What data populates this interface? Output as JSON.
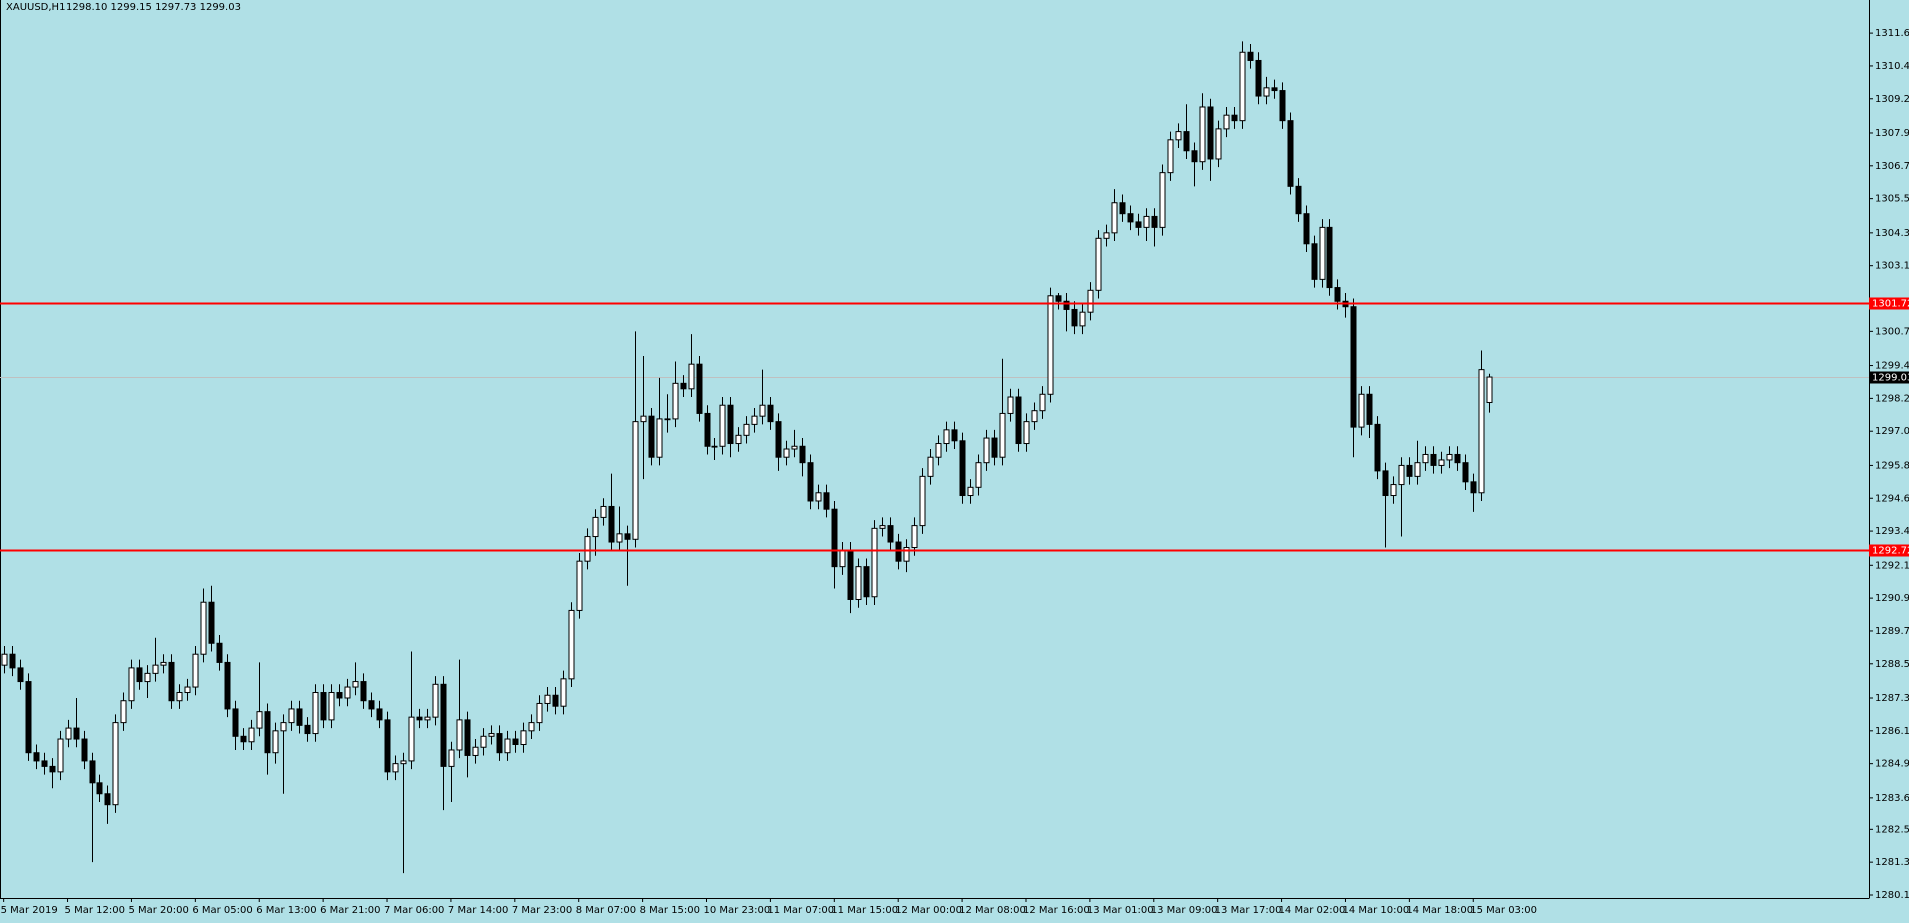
{
  "chart_data": {
    "type": "candlestick",
    "title": "XAUUSD,H1",
    "ohlc_text": "1298.10 1299.15 1297.73 1299.03",
    "background": "#b0e0e6",
    "up_color": "#ffffff",
    "down_color": "#000000",
    "grid": false,
    "ylim": [
      1279.99,
      1312.81
    ],
    "yticks": [
      {
        "value": 1311.6,
        "label": "1311.60"
      },
      {
        "value": 1310.4,
        "label": "1310.40"
      },
      {
        "value": 1309.2,
        "label": "1309.20"
      },
      1307.95,
      1306.75,
      1305.55,
      {
        "value": 1304.3,
        "label": "1304.30"
      },
      {
        "value": 1303.1,
        "label": "1303.10"
      },
      {
        "value": 1300.7,
        "label": "1300.70"
      },
      1299.45,
      1298.25,
      1297.05,
      {
        "value": 1295.8,
        "label": "1295.80"
      },
      {
        "value": 1294.6,
        "label": "1294.60"
      },
      {
        "value": 1293.4,
        "label": "1293.40"
      },
      1292.15,
      1290.95,
      1289.75,
      1288.55,
      {
        "value": 1287.3,
        "label": "1287.30"
      },
      {
        "value": 1286.1,
        "label": "1286.10"
      },
      {
        "value": 1284.9,
        "label": "1284.90"
      },
      1283.65,
      {
        "value": 1282.5,
        "label": "1282.50"
      },
      {
        "value": 1281.3,
        "label": "1281.30"
      },
      {
        "value": 1280.1,
        "label": "1280.10"
      }
    ],
    "hlines": [
      {
        "value": 1301.72,
        "color": "#ff0000"
      },
      {
        "value": 1292.72,
        "color": "#ff0000"
      }
    ],
    "current_price": {
      "value": 1299.03,
      "color": "#c0c0c0"
    },
    "categories": [
      "5 Mar 2019",
      null,
      null,
      null,
      null,
      null,
      null,
      null,
      "5 Mar 12:00",
      null,
      null,
      null,
      null,
      null,
      null,
      null,
      "5 Mar 20:00",
      null,
      null,
      null,
      null,
      null,
      null,
      null,
      "6 Mar 05:00",
      null,
      null,
      null,
      null,
      null,
      null,
      null,
      "6 Mar 13:00",
      null,
      null,
      null,
      null,
      null,
      null,
      null,
      "6 Mar 21:00",
      null,
      null,
      null,
      null,
      null,
      null,
      null,
      "7 Mar 06:00",
      null,
      null,
      null,
      null,
      null,
      null,
      null,
      "7 Mar 14:00",
      null,
      null,
      null,
      null,
      null,
      null,
      null,
      "7 Mar 23:00",
      null,
      null,
      null,
      null,
      null,
      null,
      null,
      "8 Mar 07:00",
      null,
      null,
      null,
      null,
      null,
      null,
      null,
      "8 Mar 15:00",
      null,
      null,
      null,
      null,
      null,
      null,
      null,
      "10 Mar 23:00",
      null,
      null,
      null,
      null,
      null,
      null,
      null,
      "11 Mar 07:00",
      null,
      null,
      null,
      null,
      null,
      null,
      null,
      "11 Mar 15:00",
      null,
      null,
      null,
      null,
      null,
      null,
      null,
      "12 Mar 00:00",
      null,
      null,
      null,
      null,
      null,
      null,
      null,
      "12 Mar 08:00",
      null,
      null,
      null,
      null,
      null,
      null,
      null,
      "12 Mar 16:00",
      null,
      null,
      null,
      null,
      null,
      null,
      null,
      "13 Mar 01:00",
      null,
      null,
      null,
      null,
      null,
      null,
      null,
      "13 Mar 09:00",
      null,
      null,
      null,
      null,
      null,
      null,
      null,
      "13 Mar 17:00",
      null,
      null,
      null,
      null,
      null,
      null,
      null,
      "14 Mar 02:00",
      null,
      null,
      null,
      null,
      null,
      null,
      null,
      "14 Mar 10:00",
      null,
      null,
      null,
      null,
      null,
      null,
      null,
      "14 Mar 18:00",
      null,
      null,
      null,
      null,
      null,
      null,
      null,
      "15 Mar 03:00",
      null,
      null
    ],
    "open": [
      1288.5,
      1288.9,
      1288.4,
      1287.9,
      1285.3,
      1285.0,
      1284.8,
      1284.6,
      1285.8,
      1286.2,
      1285.8,
      1285.0,
      1284.2,
      1283.8,
      1283.4,
      1286.4,
      1287.2,
      1288.4,
      1287.9,
      1288.2,
      1288.5,
      1288.6,
      1287.2,
      1287.5,
      1287.7,
      1288.9,
      1290.8,
      1289.3,
      1288.6,
      1286.9,
      1285.9,
      1285.7,
      1286.2,
      1286.8,
      1285.3,
      1286.1,
      1286.4,
      1286.9,
      1286.3,
      1286.0,
      1287.5,
      1286.5,
      1287.5,
      1287.3,
      1287.7,
      1287.9,
      1287.2,
      1286.9,
      1286.5,
      1284.6,
      1284.9,
      1285.0,
      1286.6,
      1286.5,
      1286.6,
      1287.8,
      1284.8,
      1285.4,
      1286.5,
      1285.2,
      1285.5,
      1285.9,
      1286.0,
      1285.3,
      1285.8,
      1285.6,
      1286.1,
      1286.4,
      1287.1,
      1287.4,
      1287.0,
      1288.0,
      1290.5,
      1292.3,
      1293.2,
      1293.9,
      1294.3,
      1293.0,
      1293.3,
      1293.1,
      1297.4,
      1297.6,
      1296.1,
      1297.5,
      1297.5,
      1298.8,
      1298.6,
      1299.5,
      1297.7,
      1296.5,
      1296.5,
      1298.0,
      1296.6,
      1296.9,
      1297.3,
      1297.6,
      1298.0,
      1297.4,
      1296.1,
      1296.4,
      1296.5,
      1295.9,
      1294.5,
      1294.8,
      1294.2,
      1292.1,
      1292.7,
      1290.9,
      1292.1,
      1291.0,
      1293.5,
      1293.6,
      1293.0,
      1292.3,
      1292.8,
      1293.6,
      1295.4,
      1296.1,
      1296.6,
      1297.1,
      1296.7,
      1294.7,
      1295.0,
      1295.9,
      1296.8,
      1296.1,
      1297.7,
      1298.3,
      1296.6,
      1297.4,
      1297.8,
      1298.4,
      1302.0,
      1301.8,
      1301.5,
      1300.9,
      1301.4,
      1302.2,
      1304.1,
      1304.3,
      1305.4,
      1305.0,
      1304.7,
      1304.5,
      1304.9,
      1304.5,
      1306.5,
      1307.7,
      1308.0,
      1307.3,
      1306.9,
      1308.9,
      1307.0,
      1308.1,
      1308.6,
      1308.4,
      1310.9,
      1310.6,
      1309.3,
      1309.6,
      1309.5,
      1308.4,
      1306.0,
      1305.0,
      1303.9,
      1302.6,
      1304.5,
      1302.3,
      1301.8,
      1301.6,
      1297.2,
      1298.4,
      1297.3,
      1295.6,
      1294.7,
      1295.1,
      1295.8,
      1295.4,
      1295.9,
      1296.2,
      1295.8,
      1296.0,
      1296.2,
      1295.9,
      1295.2,
      1294.8,
      1298.1
    ],
    "high": [
      1289.2,
      1289.2,
      1288.7,
      1288.2,
      1285.6,
      1285.3,
      1285.1,
      1286.1,
      1286.5,
      1287.3,
      1286.1,
      1285.3,
      1284.5,
      1284.1,
      1286.7,
      1287.5,
      1288.7,
      1288.7,
      1288.5,
      1289.5,
      1288.9,
      1288.9,
      1287.8,
      1288.0,
      1289.2,
      1291.3,
      1291.4,
      1289.6,
      1288.9,
      1287.2,
      1286.2,
      1286.5,
      1288.6,
      1287.1,
      1286.4,
      1286.7,
      1287.2,
      1287.2,
      1286.6,
      1287.8,
      1287.8,
      1287.8,
      1287.8,
      1288.0,
      1288.6,
      1288.2,
      1287.5,
      1287.2,
      1286.8,
      1285.2,
      1285.3,
      1289.0,
      1286.9,
      1286.9,
      1288.1,
      1288.1,
      1285.7,
      1288.7,
      1286.8,
      1285.8,
      1286.2,
      1286.3,
      1286.3,
      1286.1,
      1286.1,
      1286.4,
      1286.7,
      1287.4,
      1287.7,
      1287.7,
      1288.3,
      1290.8,
      1292.6,
      1293.5,
      1294.2,
      1294.6,
      1295.5,
      1294.3,
      1293.6,
      1300.7,
      1299.8,
      1297.9,
      1299.0,
      1298.4,
      1299.6,
      1299.1,
      1300.6,
      1299.8,
      1298.0,
      1296.8,
      1298.3,
      1298.3,
      1297.2,
      1297.6,
      1297.9,
      1299.3,
      1298.3,
      1297.7,
      1296.7,
      1297.1,
      1296.8,
      1296.2,
      1295.1,
      1295.1,
      1294.5,
      1293.0,
      1293.0,
      1292.4,
      1292.4,
      1293.8,
      1293.9,
      1293.9,
      1293.3,
      1293.1,
      1293.9,
      1295.7,
      1296.4,
      1296.9,
      1297.4,
      1297.4,
      1297.0,
      1295.3,
      1296.2,
      1297.1,
      1297.1,
      1299.7,
      1298.6,
      1298.6,
      1297.7,
      1298.1,
      1298.7,
      1302.3,
      1302.1,
      1302.1,
      1301.8,
      1301.7,
      1302.5,
      1304.4,
      1304.6,
      1305.9,
      1305.7,
      1305.3,
      1305.0,
      1305.2,
      1305.2,
      1306.8,
      1308.0,
      1308.3,
      1309.0,
      1307.6,
      1309.4,
      1309.2,
      1308.4,
      1308.9,
      1308.9,
      1311.3,
      1311.2,
      1310.9,
      1310.0,
      1309.9,
      1309.8,
      1308.7,
      1306.3,
      1305.3,
      1304.2,
      1304.8,
      1304.8,
      1302.6,
      1302.1,
      1301.9,
      1298.7,
      1298.7,
      1297.6,
      1295.9,
      1295.4,
      1296.1,
      1296.1,
      1296.7,
      1296.5,
      1296.5,
      1296.3,
      1296.5,
      1296.5,
      1296.2,
      1295.5,
      1300.0,
      1299.15
    ],
    "low": [
      1288.2,
      1288.1,
      1287.6,
      1285.0,
      1284.7,
      1284.5,
      1284.0,
      1284.3,
      1285.5,
      1285.5,
      1284.7,
      1281.3,
      1283.5,
      1282.7,
      1283.1,
      1286.1,
      1286.9,
      1287.6,
      1287.3,
      1287.9,
      1288.2,
      1286.9,
      1286.9,
      1287.2,
      1287.4,
      1288.6,
      1289.0,
      1288.3,
      1286.6,
      1285.4,
      1285.4,
      1285.4,
      1285.9,
      1284.5,
      1284.9,
      1283.8,
      1286.1,
      1286.0,
      1285.7,
      1285.7,
      1286.2,
      1286.2,
      1287.0,
      1287.0,
      1287.4,
      1286.9,
      1286.6,
      1286.2,
      1284.3,
      1284.3,
      1280.9,
      1284.7,
      1286.2,
      1286.2,
      1286.3,
      1283.2,
      1283.5,
      1285.1,
      1284.4,
      1284.9,
      1285.2,
      1285.6,
      1285.0,
      1285.0,
      1285.3,
      1285.3,
      1285.8,
      1286.1,
      1286.8,
      1286.7,
      1286.7,
      1287.7,
      1290.2,
      1292.0,
      1292.5,
      1293.6,
      1292.7,
      1292.7,
      1291.4,
      1292.8,
      1295.3,
      1295.8,
      1295.8,
      1297.0,
      1297.2,
      1298.3,
      1298.3,
      1297.4,
      1296.2,
      1296.0,
      1296.2,
      1296.1,
      1296.3,
      1296.6,
      1297.0,
      1297.3,
      1297.1,
      1295.6,
      1295.8,
      1296.1,
      1295.4,
      1294.2,
      1294.2,
      1293.9,
      1291.3,
      1291.8,
      1290.4,
      1290.6,
      1290.7,
      1290.7,
      1293.2,
      1292.7,
      1292.0,
      1291.9,
      1292.5,
      1293.3,
      1295.1,
      1295.8,
      1296.3,
      1296.4,
      1294.4,
      1294.4,
      1294.7,
      1295.6,
      1295.8,
      1295.8,
      1297.4,
      1296.3,
      1296.3,
      1297.1,
      1297.5,
      1298.1,
      1301.5,
      1300.7,
      1300.6,
      1300.6,
      1301.1,
      1301.9,
      1303.8,
      1304.0,
      1304.7,
      1304.4,
      1304.2,
      1304.0,
      1303.8,
      1304.2,
      1306.2,
      1307.4,
      1307.0,
      1306.0,
      1306.6,
      1306.2,
      1306.7,
      1307.8,
      1308.1,
      1308.1,
      1310.3,
      1309.0,
      1309.0,
      1309.2,
      1308.1,
      1305.7,
      1304.7,
      1303.6,
      1302.3,
      1302.3,
      1302.0,
      1301.5,
      1301.2,
      1296.1,
      1296.9,
      1296.8,
      1295.3,
      1292.8,
      1294.4,
      1293.2,
      1295.1,
      1295.1,
      1295.6,
      1295.5,
      1295.5,
      1295.7,
      1295.6,
      1294.9,
      1294.1,
      1294.5,
      1297.73
    ],
    "close": [
      1288.9,
      1288.4,
      1287.9,
      1285.3,
      1285.0,
      1284.8,
      1284.6,
      1285.8,
      1286.2,
      1285.8,
      1285.0,
      1284.2,
      1283.8,
      1283.4,
      1286.4,
      1287.2,
      1288.4,
      1287.9,
      1288.2,
      1288.5,
      1288.6,
      1287.2,
      1287.5,
      1287.7,
      1288.9,
      1290.8,
      1289.3,
      1288.6,
      1286.9,
      1285.9,
      1285.7,
      1286.2,
      1286.8,
      1285.3,
      1286.1,
      1286.4,
      1286.9,
      1286.3,
      1286.0,
      1287.5,
      1286.5,
      1287.5,
      1287.3,
      1287.7,
      1287.9,
      1287.2,
      1286.9,
      1286.5,
      1284.6,
      1284.9,
      1285.0,
      1286.6,
      1286.5,
      1286.6,
      1287.8,
      1284.8,
      1285.4,
      1286.5,
      1285.2,
      1285.5,
      1285.9,
      1286.0,
      1285.3,
      1285.8,
      1285.6,
      1286.1,
      1286.4,
      1287.1,
      1287.4,
      1287.0,
      1288.0,
      1290.5,
      1292.3,
      1293.2,
      1293.9,
      1294.3,
      1293.0,
      1293.3,
      1293.1,
      1297.4,
      1297.6,
      1296.1,
      1297.5,
      1297.5,
      1298.8,
      1298.6,
      1299.5,
      1297.7,
      1296.5,
      1296.5,
      1298.0,
      1296.6,
      1296.9,
      1297.3,
      1297.6,
      1298.0,
      1297.4,
      1296.1,
      1296.4,
      1296.5,
      1295.9,
      1294.5,
      1294.8,
      1294.2,
      1292.1,
      1292.7,
      1290.9,
      1292.1,
      1291.0,
      1293.5,
      1293.6,
      1293.0,
      1292.3,
      1292.8,
      1293.6,
      1295.4,
      1296.1,
      1296.6,
      1297.1,
      1296.7,
      1294.7,
      1295.0,
      1295.9,
      1296.8,
      1296.1,
      1297.7,
      1298.3,
      1296.6,
      1297.4,
      1297.8,
      1298.4,
      1302.0,
      1301.8,
      1301.5,
      1300.9,
      1301.4,
      1302.2,
      1304.1,
      1304.3,
      1305.4,
      1305.0,
      1304.7,
      1304.5,
      1304.9,
      1304.5,
      1306.5,
      1307.7,
      1308.0,
      1307.3,
      1306.9,
      1308.9,
      1307.0,
      1308.1,
      1308.6,
      1308.4,
      1310.9,
      1310.6,
      1309.3,
      1309.6,
      1309.5,
      1308.4,
      1306.0,
      1305.0,
      1303.9,
      1302.6,
      1304.5,
      1302.3,
      1301.8,
      1301.6,
      1297.2,
      1298.4,
      1297.3,
      1295.6,
      1294.7,
      1295.1,
      1295.8,
      1295.4,
      1295.9,
      1296.2,
      1295.8,
      1296.0,
      1296.2,
      1295.9,
      1295.2,
      1294.8,
      1299.3,
      1299.03
    ]
  }
}
